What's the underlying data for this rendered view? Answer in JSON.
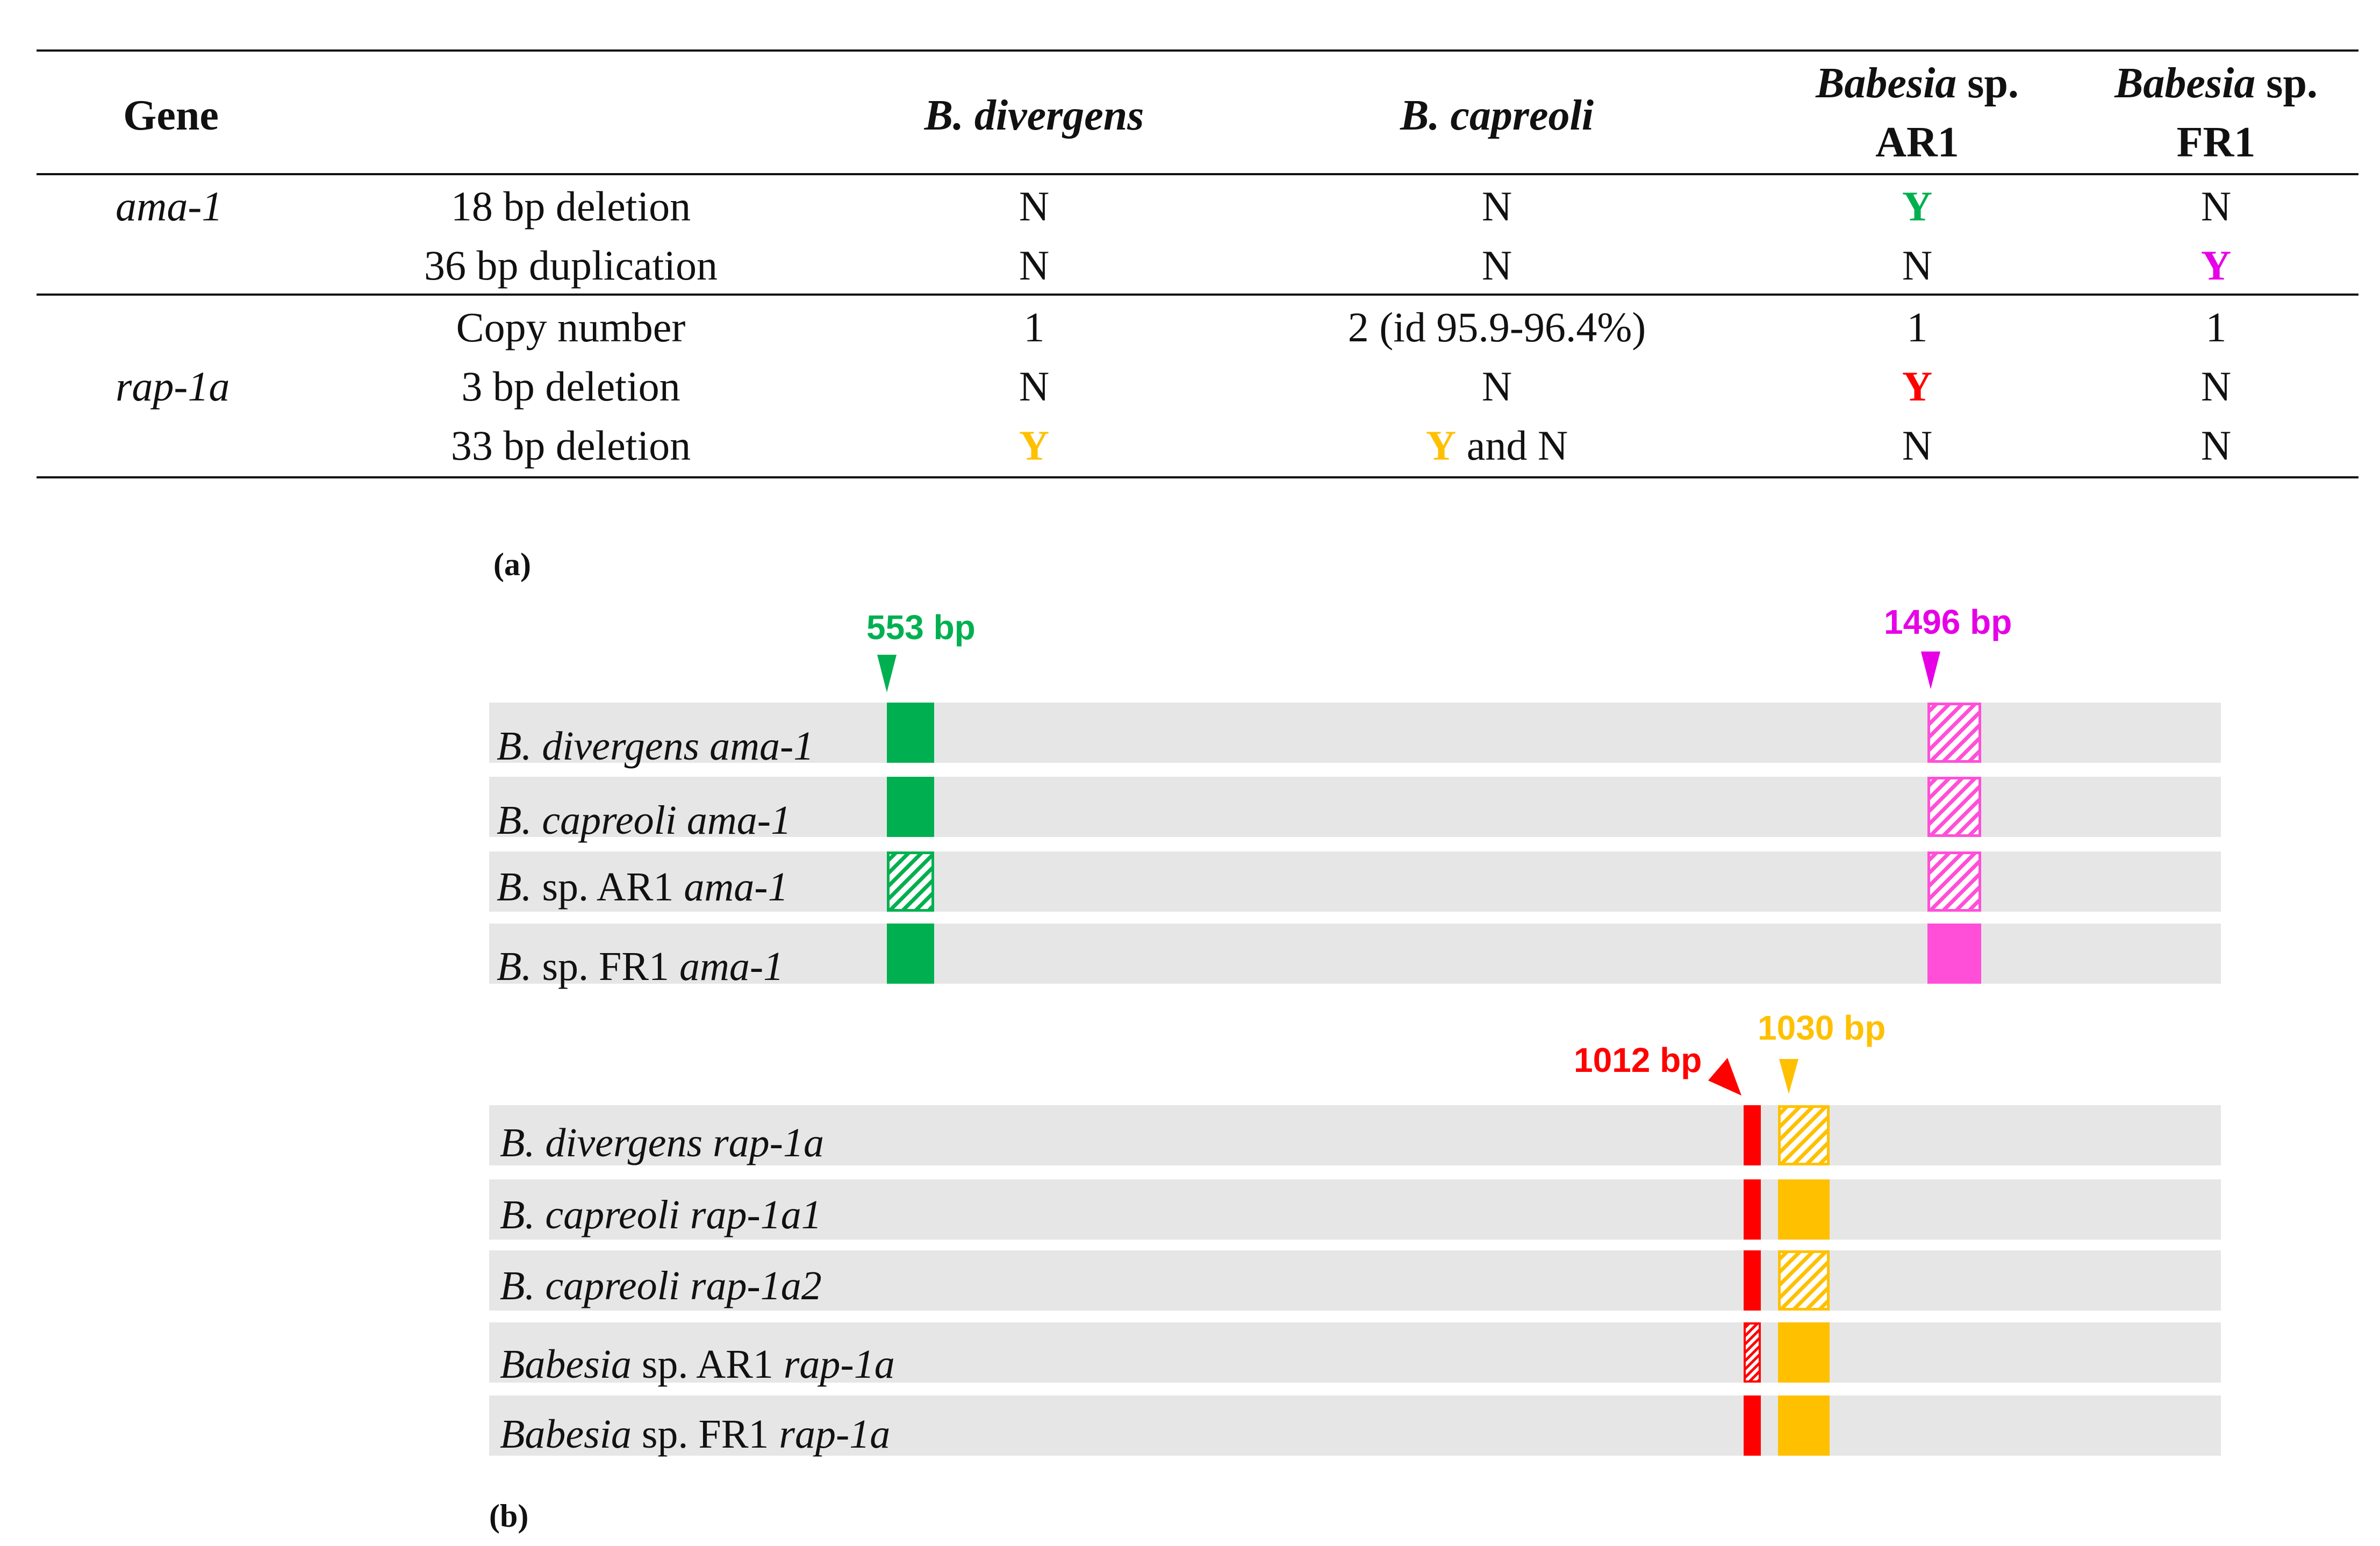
{
  "table": {
    "headers": {
      "gene": "Gene",
      "col1": "B. divergens",
      "col2": "B. capreoli",
      "col3_line1_it": "Babesia",
      "col3_line1_rest": " sp.",
      "col3_line2": "AR1",
      "col4_line1_it": "Babesia",
      "col4_line1_rest": " sp.",
      "col4_line2": "FR1"
    },
    "groups": [
      {
        "gene": "ama-1",
        "rows": [
          {
            "feature": "18 bp deletion",
            "v1": "N",
            "v2": "N",
            "v3": "Y",
            "v4": "N"
          },
          {
            "feature": "36 bp duplication",
            "v1": "N",
            "v2": "N",
            "v3": "N",
            "v4": "Y"
          }
        ]
      },
      {
        "gene": "rap-1a",
        "rows": [
          {
            "feature": "Copy number",
            "v1": "1",
            "v2": "2 (id 95.9-96.4%)",
            "v3": "1",
            "v4": "1"
          },
          {
            "feature": "3 bp deletion",
            "v1": "N",
            "v2": "N",
            "v3": "Y",
            "v4": "N"
          },
          {
            "feature": "33 bp deletion",
            "v1": "Y",
            "v2_y": "Y",
            "v2_rest": " and N",
            "v3": "N",
            "v4": "N"
          }
        ]
      }
    ]
  },
  "colors": {
    "green": "#00b050",
    "magenta": "#e600e6",
    "red": "#ff0000",
    "yellow": "#ffc000",
    "pink": "#ff4fd8",
    "bar": "#e6e6e6"
  },
  "panel_a": {
    "label": "(a)",
    "marker_left": "553 bp",
    "marker_right": "1496 bp",
    "rows": [
      {
        "species": "B. divergens",
        "gene": " ama-1"
      },
      {
        "species": "B. capreoli",
        "gene": " ama-1"
      },
      {
        "species_it": "B.",
        "species_rest": " sp. AR1",
        "gene": " ama-1"
      },
      {
        "species_it": "B.",
        "species_rest": " sp. FR1",
        "gene": " ama-1"
      }
    ]
  },
  "panel_b": {
    "label": "(b)",
    "marker_left": "1012 bp",
    "marker_right": "1030 bp",
    "rows": [
      {
        "species": "B. divergens",
        "gene": " rap-1a"
      },
      {
        "species": "B. capreoli",
        "gene": " rap-1a1"
      },
      {
        "species": "B. capreoli",
        "gene": " rap-1a2"
      },
      {
        "species_it": "Babesia",
        "species_rest": " sp. AR1",
        "gene": " rap-1a"
      },
      {
        "species_it": "Babesia",
        "species_rest": " sp. FR1",
        "gene": " rap-1a"
      }
    ]
  }
}
